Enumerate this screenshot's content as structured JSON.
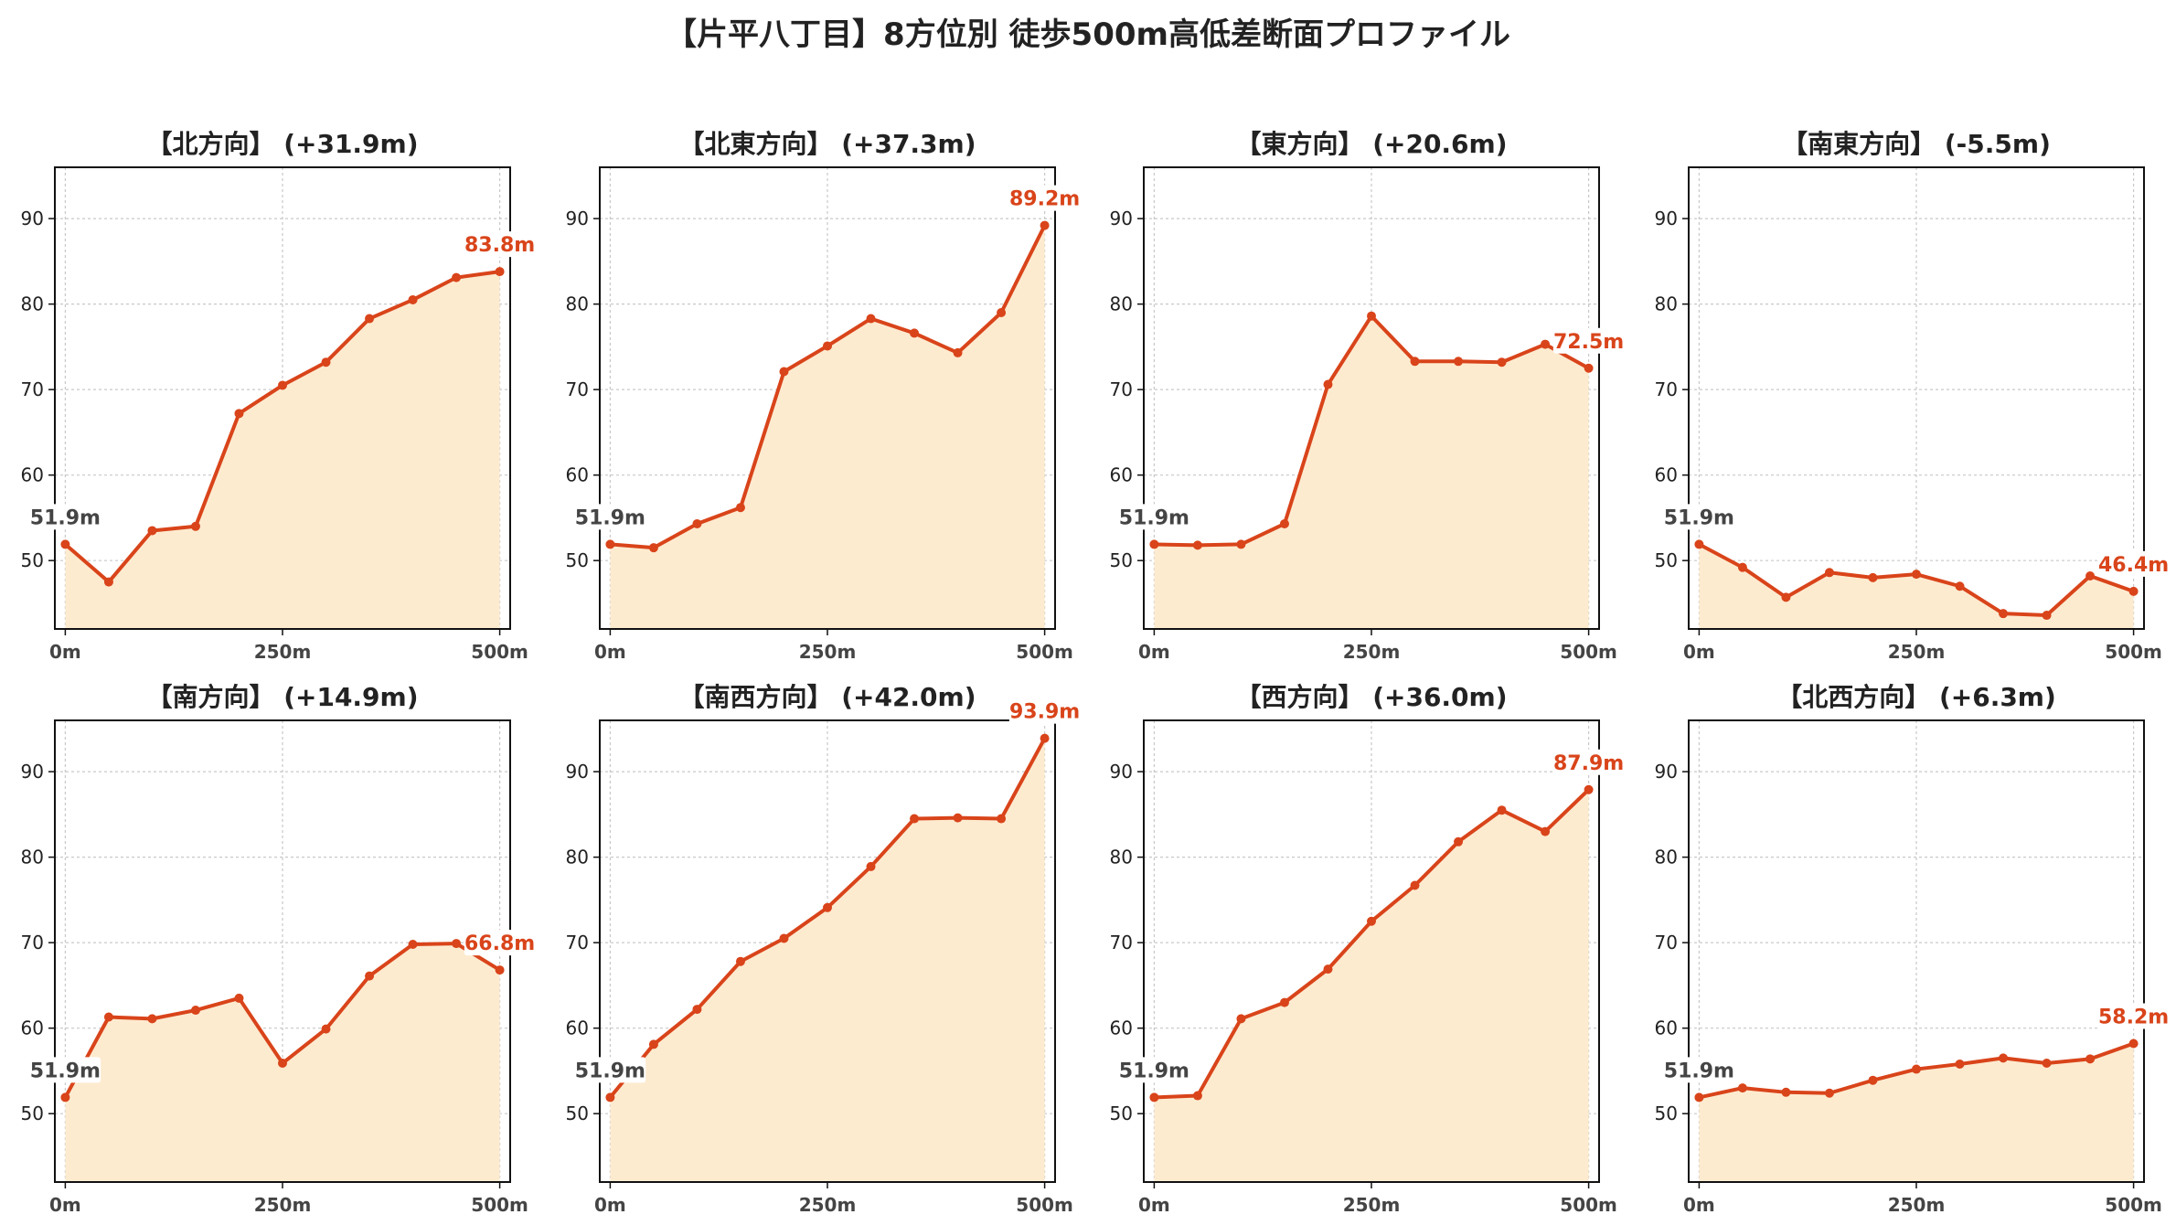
{
  "title": "【片平八丁目】8方位別 徒歩500m高低差断面プロファイル",
  "colors": {
    "line": "#d9441a",
    "fill": "#fdebd0",
    "start_label": "#444444",
    "end_label": "#d9441a",
    "grid": "#c8c8c8"
  },
  "chart_data": [
    {
      "type": "area",
      "title": "【北方向】 (+31.9m)",
      "x": [
        0,
        50,
        100,
        150,
        200,
        250,
        300,
        350,
        400,
        450,
        500
      ],
      "y": [
        51.9,
        47.5,
        53.5,
        54.0,
        67.2,
        70.5,
        73.2,
        78.3,
        80.5,
        83.1,
        83.8
      ],
      "start_label": "51.9m",
      "end_label": "83.8m",
      "x_ticks": [
        0,
        250,
        500
      ],
      "x_tick_labels": [
        "0m",
        "250m",
        "500m"
      ],
      "y_ticks": [
        50,
        60,
        70,
        80,
        90
      ],
      "ylim": [
        42,
        96
      ],
      "xlim": [
        -12,
        512
      ],
      "grid": true
    },
    {
      "type": "area",
      "title": "【北東方向】 (+37.3m)",
      "x": [
        0,
        50,
        100,
        150,
        200,
        250,
        300,
        350,
        400,
        450,
        500
      ],
      "y": [
        51.9,
        51.5,
        54.3,
        56.2,
        72.1,
        75.1,
        78.3,
        76.6,
        74.3,
        79.0,
        89.2
      ],
      "start_label": "51.9m",
      "end_label": "89.2m",
      "x_ticks": [
        0,
        250,
        500
      ],
      "x_tick_labels": [
        "0m",
        "250m",
        "500m"
      ],
      "y_ticks": [
        50,
        60,
        70,
        80,
        90
      ],
      "ylim": [
        42,
        96
      ],
      "xlim": [
        -12,
        512
      ],
      "grid": true
    },
    {
      "type": "area",
      "title": "【東方向】 (+20.6m)",
      "x": [
        0,
        50,
        100,
        150,
        200,
        250,
        300,
        350,
        400,
        450,
        500
      ],
      "y": [
        51.9,
        51.8,
        51.9,
        54.3,
        70.6,
        78.6,
        73.3,
        73.3,
        73.2,
        75.3,
        72.5
      ],
      "start_label": "51.9m",
      "end_label": "72.5m",
      "x_ticks": [
        0,
        250,
        500
      ],
      "x_tick_labels": [
        "0m",
        "250m",
        "500m"
      ],
      "y_ticks": [
        50,
        60,
        70,
        80,
        90
      ],
      "ylim": [
        42,
        96
      ],
      "xlim": [
        -12,
        512
      ],
      "grid": true
    },
    {
      "type": "area",
      "title": "【南東方向】 (-5.5m)",
      "x": [
        0,
        50,
        100,
        150,
        200,
        250,
        300,
        350,
        400,
        450,
        500
      ],
      "y": [
        51.9,
        49.2,
        45.7,
        48.6,
        48.0,
        48.4,
        47.0,
        43.8,
        43.6,
        48.2,
        46.4
      ],
      "start_label": "51.9m",
      "end_label": "46.4m",
      "x_ticks": [
        0,
        250,
        500
      ],
      "x_tick_labels": [
        "0m",
        "250m",
        "500m"
      ],
      "y_ticks": [
        50,
        60,
        70,
        80,
        90
      ],
      "ylim": [
        42,
        96
      ],
      "xlim": [
        -12,
        512
      ],
      "grid": true
    },
    {
      "type": "area",
      "title": "【南方向】 (+14.9m)",
      "x": [
        0,
        50,
        100,
        150,
        200,
        250,
        300,
        350,
        400,
        450,
        500
      ],
      "y": [
        51.9,
        61.3,
        61.1,
        62.1,
        63.5,
        55.9,
        59.9,
        66.1,
        69.8,
        69.9,
        66.8
      ],
      "start_label": "51.9m",
      "end_label": "66.8m",
      "x_ticks": [
        0,
        250,
        500
      ],
      "x_tick_labels": [
        "0m",
        "250m",
        "500m"
      ],
      "y_ticks": [
        50,
        60,
        70,
        80,
        90
      ],
      "ylim": [
        42,
        96
      ],
      "xlim": [
        -12,
        512
      ],
      "grid": true
    },
    {
      "type": "area",
      "title": "【南西方向】 (+42.0m)",
      "x": [
        0,
        50,
        100,
        150,
        200,
        250,
        300,
        350,
        400,
        450,
        500
      ],
      "y": [
        51.9,
        58.1,
        62.2,
        67.8,
        70.5,
        74.1,
        78.9,
        84.5,
        84.6,
        84.5,
        93.9
      ],
      "start_label": "51.9m",
      "end_label": "93.9m",
      "x_ticks": [
        0,
        250,
        500
      ],
      "x_tick_labels": [
        "0m",
        "250m",
        "500m"
      ],
      "y_ticks": [
        50,
        60,
        70,
        80,
        90
      ],
      "ylim": [
        42,
        96
      ],
      "xlim": [
        -12,
        512
      ],
      "grid": true
    },
    {
      "type": "area",
      "title": "【西方向】 (+36.0m)",
      "x": [
        0,
        50,
        100,
        150,
        200,
        250,
        300,
        350,
        400,
        450,
        500
      ],
      "y": [
        51.9,
        52.1,
        61.1,
        63.0,
        66.9,
        72.5,
        76.7,
        81.8,
        85.5,
        83.0,
        87.9
      ],
      "start_label": "51.9m",
      "end_label": "87.9m",
      "x_ticks": [
        0,
        250,
        500
      ],
      "x_tick_labels": [
        "0m",
        "250m",
        "500m"
      ],
      "y_ticks": [
        50,
        60,
        70,
        80,
        90
      ],
      "ylim": [
        42,
        96
      ],
      "xlim": [
        -12,
        512
      ],
      "grid": true
    },
    {
      "type": "area",
      "title": "【北西方向】 (+6.3m)",
      "x": [
        0,
        50,
        100,
        150,
        200,
        250,
        300,
        350,
        400,
        450,
        500
      ],
      "y": [
        51.9,
        53.0,
        52.5,
        52.4,
        53.9,
        55.2,
        55.8,
        56.5,
        55.9,
        56.4,
        58.2
      ],
      "start_label": "51.9m",
      "end_label": "58.2m",
      "x_ticks": [
        0,
        250,
        500
      ],
      "x_tick_labels": [
        "0m",
        "250m",
        "500m"
      ],
      "y_ticks": [
        50,
        60,
        70,
        80,
        90
      ],
      "ylim": [
        42,
        96
      ],
      "xlim": [
        -12,
        512
      ],
      "grid": true
    }
  ]
}
